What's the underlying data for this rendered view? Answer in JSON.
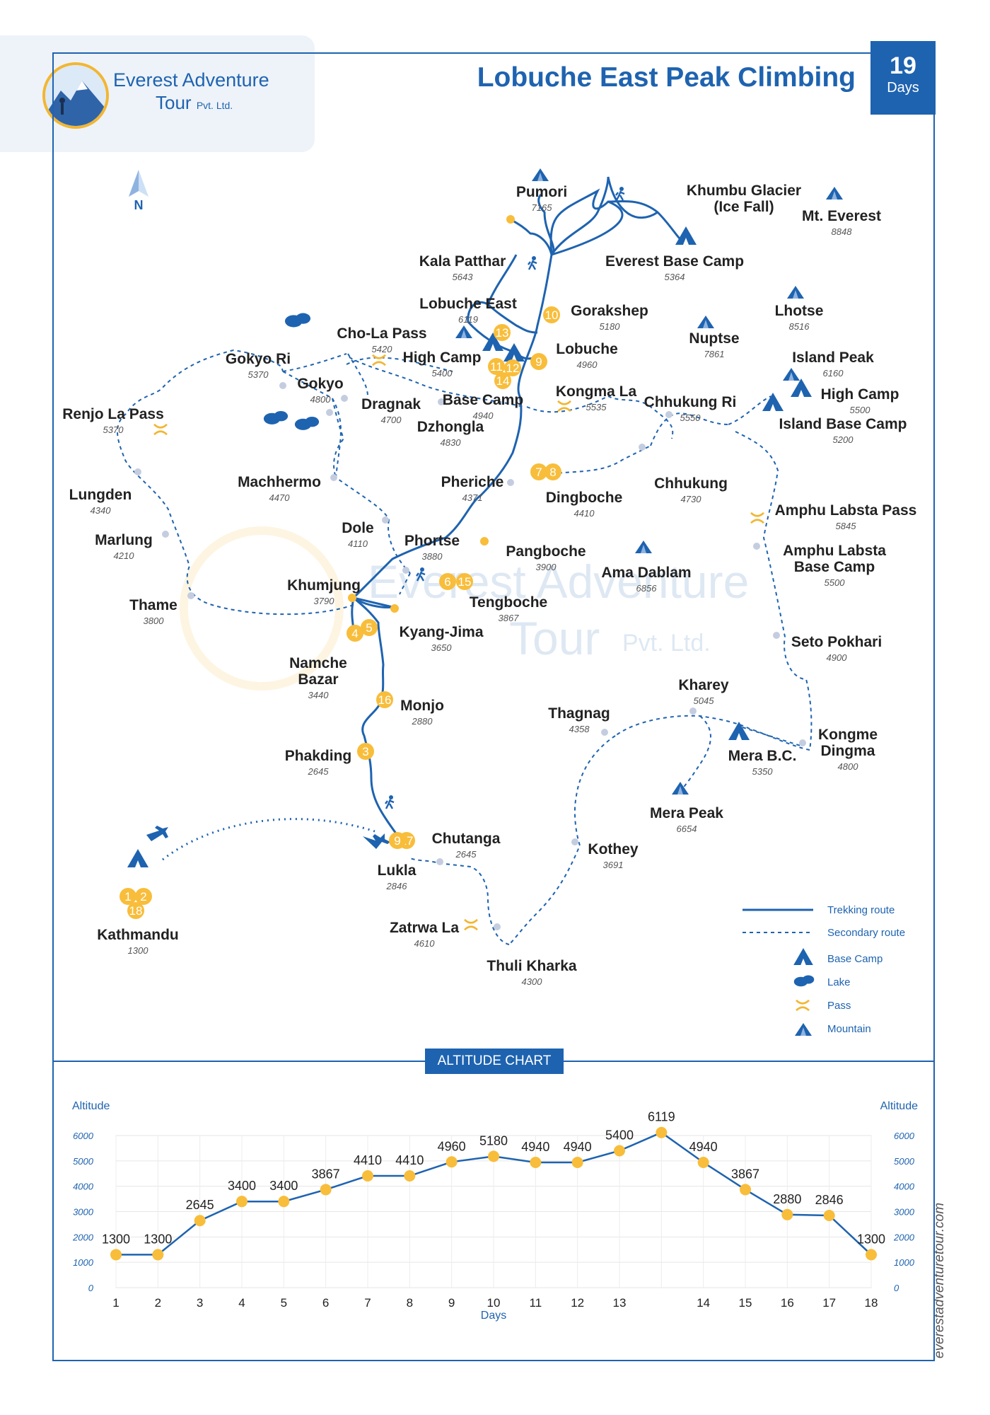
{
  "brand": {
    "name": "Everest Adventure",
    "sub_main": "Tour",
    "sub_small": "Pvt. Ltd."
  },
  "title": "Lobuche East Peak Climbing",
  "duration": {
    "number": "19",
    "unit": "Days"
  },
  "compass": "N",
  "places": [
    {
      "id": "pumori",
      "name": "Pumori",
      "alt": "7165"
    },
    {
      "id": "khumbu",
      "name": "Khumbu Glacier\n(Ice Fall)",
      "alt": ""
    },
    {
      "id": "everest",
      "name": "Mt. Everest",
      "alt": "8848"
    },
    {
      "id": "kalapatthar",
      "name": "Kala Patthar",
      "alt": "5643"
    },
    {
      "id": "ebc",
      "name": "Everest Base Camp",
      "alt": "5364"
    },
    {
      "id": "lobucheeast",
      "name": "Lobuche East",
      "alt": "6119"
    },
    {
      "id": "gorakshep",
      "name": "Gorakshep",
      "alt": "5180"
    },
    {
      "id": "lhotse",
      "name": "Lhotse",
      "alt": "8516"
    },
    {
      "id": "cholapass",
      "name": "Cho-La Pass",
      "alt": "5420"
    },
    {
      "id": "highcamp",
      "name": "High Camp",
      "alt": "5400"
    },
    {
      "id": "lobuche",
      "name": "Lobuche",
      "alt": "4960"
    },
    {
      "id": "nuptse",
      "name": "Nuptse",
      "alt": "7861"
    },
    {
      "id": "islandpeak",
      "name": "Island Peak",
      "alt": "6160"
    },
    {
      "id": "gokyori",
      "name": "Gokyo Ri",
      "alt": "5370"
    },
    {
      "id": "gokyo",
      "name": "Gokyo",
      "alt": "4800"
    },
    {
      "id": "dragnak",
      "name": "Dragnak",
      "alt": "4700"
    },
    {
      "id": "basecamp",
      "name": "Base Camp",
      "alt": "4940"
    },
    {
      "id": "kongmala",
      "name": "Kongma La",
      "alt": "5535"
    },
    {
      "id": "chhukungri",
      "name": "Chhukung Ri",
      "alt": "5550"
    },
    {
      "id": "ihighcamp",
      "name": "High Camp",
      "alt": "5500"
    },
    {
      "id": "renjola",
      "name": "Renjo La Pass",
      "alt": "5370"
    },
    {
      "id": "dzhongla",
      "name": "Dzhongla",
      "alt": "4830"
    },
    {
      "id": "islandbc",
      "name": "Island Base Camp",
      "alt": "5200"
    },
    {
      "id": "machhermo",
      "name": "Machhermo",
      "alt": "4470"
    },
    {
      "id": "pheriche",
      "name": "Pheriche",
      "alt": "4371"
    },
    {
      "id": "chhukung",
      "name": "Chhukung",
      "alt": "4730"
    },
    {
      "id": "lungden",
      "name": "Lungden",
      "alt": "4340"
    },
    {
      "id": "dingboche",
      "name": "Dingboche",
      "alt": "4410"
    },
    {
      "id": "amphupass",
      "name": "Amphu Labsta Pass",
      "alt": "5845"
    },
    {
      "id": "dole",
      "name": "Dole",
      "alt": "4110"
    },
    {
      "id": "marlung",
      "name": "Marlung",
      "alt": "4210"
    },
    {
      "id": "phortse",
      "name": "Phortse",
      "alt": "3880"
    },
    {
      "id": "pangboche",
      "name": "Pangboche",
      "alt": "3900"
    },
    {
      "id": "amphubc",
      "name": "Amphu Labsta\nBase Camp",
      "alt": "5500"
    },
    {
      "id": "amadablam",
      "name": "Ama Dablam",
      "alt": "6856"
    },
    {
      "id": "khumjung",
      "name": "Khumjung",
      "alt": "3790"
    },
    {
      "id": "tengboche",
      "name": "Tengboche",
      "alt": "3867"
    },
    {
      "id": "thame",
      "name": "Thame",
      "alt": "3800"
    },
    {
      "id": "kyangjima",
      "name": "Kyang-Jima",
      "alt": "3650"
    },
    {
      "id": "setopokhari",
      "name": "Seto Pokhari",
      "alt": "4900"
    },
    {
      "id": "namche",
      "name": "Namche\nBazar",
      "alt": "3440"
    },
    {
      "id": "kharey",
      "name": "Kharey",
      "alt": "5045"
    },
    {
      "id": "monjo",
      "name": "Monjo",
      "alt": "2880"
    },
    {
      "id": "thagnag",
      "name": "Thagnag",
      "alt": "4358"
    },
    {
      "id": "kongmedingma",
      "name": "Kongme\nDingma",
      "alt": "4800"
    },
    {
      "id": "merabc",
      "name": "Mera B.C.",
      "alt": "5350"
    },
    {
      "id": "phakding",
      "name": "Phakding",
      "alt": "2645"
    },
    {
      "id": "merapeak",
      "name": "Mera Peak",
      "alt": "6654"
    },
    {
      "id": "chutanga",
      "name": "Chutanga",
      "alt": "2645"
    },
    {
      "id": "kothey",
      "name": "Kothey",
      "alt": "3691"
    },
    {
      "id": "lukla",
      "name": "Lukla",
      "alt": "2846"
    },
    {
      "id": "kathmandu",
      "name": "Kathmandu",
      "alt": "1300"
    },
    {
      "id": "zatrwala",
      "name": "Zatrwa La",
      "alt": "4610"
    },
    {
      "id": "thulikharka",
      "name": "Thuli Kharka",
      "alt": "4300"
    }
  ],
  "day_markers": [
    "1",
    "2",
    "3",
    "4",
    "5",
    "6",
    "7",
    "8",
    "9",
    "10",
    "11",
    "12",
    "13",
    "14",
    "15",
    "16",
    "17",
    "18"
  ],
  "legend": {
    "trekking": "Trekking route",
    "secondary": "Secondary route",
    "basecamp": "Base Camp",
    "lake": "Lake",
    "pass": "Pass",
    "mountain": "Mountain"
  },
  "watermark": {
    "line1": "Everest Adventure",
    "line2": "Tour",
    "line2_small": "Pvt. Ltd."
  },
  "chart_tab": "ALTITUDE CHART",
  "website": "everestadventuretour.com",
  "chart_data": {
    "type": "line",
    "title": "ALTITUDE CHART",
    "xlabel": "Days",
    "ylabel": "Altitude",
    "ylim": [
      0,
      6000
    ],
    "yticks": [
      "0",
      "1000",
      "2000",
      "3000",
      "4000",
      "5000",
      "6000"
    ],
    "categories": [
      "1",
      "2",
      "3",
      "4",
      "5",
      "6",
      "7",
      "8",
      "9",
      "10",
      "11",
      "12",
      "13",
      "",
      "14",
      "15",
      "16",
      "17",
      "18"
    ],
    "values": [
      1300,
      1300,
      2645,
      3400,
      3400,
      3867,
      4410,
      4410,
      4960,
      5180,
      4940,
      4940,
      5400,
      6119,
      4940,
      3867,
      2880,
      2846,
      1300
    ],
    "grid": true,
    "colors": {
      "line": "#1e63b0",
      "point": "#f8bd3a"
    }
  }
}
